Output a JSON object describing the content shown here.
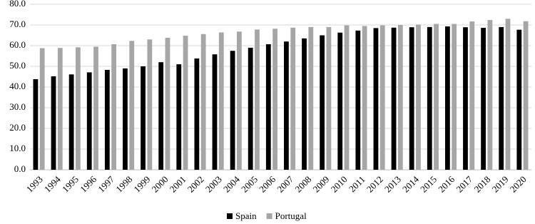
{
  "chart_data": {
    "type": "bar",
    "categories": [
      "1993",
      "1994",
      "1995",
      "1996",
      "1997",
      "1998",
      "1999",
      "2000",
      "2001",
      "2002",
      "2003",
      "2004",
      "2005",
      "2006",
      "2007",
      "2008",
      "2009",
      "2010",
      "2011",
      "2012",
      "2013",
      "2014",
      "2015",
      "2016",
      "2017",
      "2018",
      "2019",
      "2020"
    ],
    "series": [
      {
        "name": "Spain",
        "color": "#000000",
        "values": [
          43.8,
          45.2,
          46.1,
          47.1,
          48.3,
          49.0,
          50.0,
          52.0,
          51.0,
          53.8,
          55.8,
          57.5,
          59.0,
          60.7,
          62.0,
          63.5,
          65.0,
          66.3,
          67.3,
          68.5,
          68.7,
          68.9,
          69.0,
          69.3,
          68.9,
          68.6,
          69.0,
          67.7
        ]
      },
      {
        "name": "Portugal",
        "color": "#a6a6a6",
        "values": [
          58.8,
          58.9,
          59.2,
          59.5,
          60.7,
          62.3,
          63.0,
          63.8,
          64.8,
          65.6,
          66.4,
          66.8,
          67.8,
          68.2,
          68.7,
          69.0,
          69.0,
          69.8,
          69.5,
          69.8,
          70.0,
          70.2,
          70.5,
          70.5,
          71.7,
          72.4,
          73.0,
          71.8
        ]
      }
    ],
    "ylim": [
      0,
      80
    ],
    "yticks": [
      {
        "value": 0,
        "label": "0.0"
      },
      {
        "value": 10,
        "label": "10.0"
      },
      {
        "value": 20,
        "label": "20.0"
      },
      {
        "value": 30,
        "label": "30.0"
      },
      {
        "value": 40,
        "label": "40.0"
      },
      {
        "value": 50,
        "label": "50.0"
      },
      {
        "value": 60,
        "label": "60.0"
      },
      {
        "value": 70,
        "label": "70.0"
      },
      {
        "value": 80,
        "label": "80.0"
      }
    ],
    "grid": true,
    "legend": "bottom"
  }
}
